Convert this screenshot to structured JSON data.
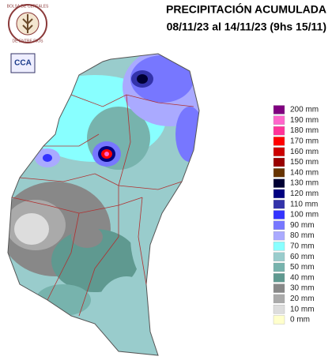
{
  "header": {
    "title_line1": "PRECIPITACIÓN ACUMULADA",
    "title_line2": "08/11/23 al 14/11/23 (9hs 15/11)"
  },
  "logos": {
    "bolsa_top": "BOLSA DE CEREALES",
    "bolsa_bottom": "DE ENTRE RIOS",
    "cca": "CCA"
  },
  "legend": [
    {
      "label": "200 mm",
      "color": "#800080"
    },
    {
      "label": "190 mm",
      "color": "#ff66cc"
    },
    {
      "label": "180 mm",
      "color": "#ff3399"
    },
    {
      "label": "170 mm",
      "color": "#ff0000"
    },
    {
      "label": "160 mm",
      "color": "#cc0000"
    },
    {
      "label": "150 mm",
      "color": "#990000"
    },
    {
      "label": "140 mm",
      "color": "#663300"
    },
    {
      "label": "130 mm",
      "color": "#000033"
    },
    {
      "label": "120 mm",
      "color": "#000080"
    },
    {
      "label": "110 mm",
      "color": "#3333aa"
    },
    {
      "label": "100 mm",
      "color": "#3333ff"
    },
    {
      "label": "90 mm",
      "color": "#7777ff"
    },
    {
      "label": "80 mm",
      "color": "#aaaaff"
    },
    {
      "label": "70 mm",
      "color": "#88ffff"
    },
    {
      "label": "60 mm",
      "color": "#99cccc"
    },
    {
      "label": "50 mm",
      "color": "#77b3ad"
    },
    {
      "label": "40 mm",
      "color": "#5f9990"
    },
    {
      "label": "30 mm",
      "color": "#888888"
    },
    {
      "label": "20 mm",
      "color": "#aaaaaa"
    },
    {
      "label": "10 mm",
      "color": "#dddddd"
    },
    {
      "label": "0 mm",
      "color": "#ffffcc"
    }
  ]
}
